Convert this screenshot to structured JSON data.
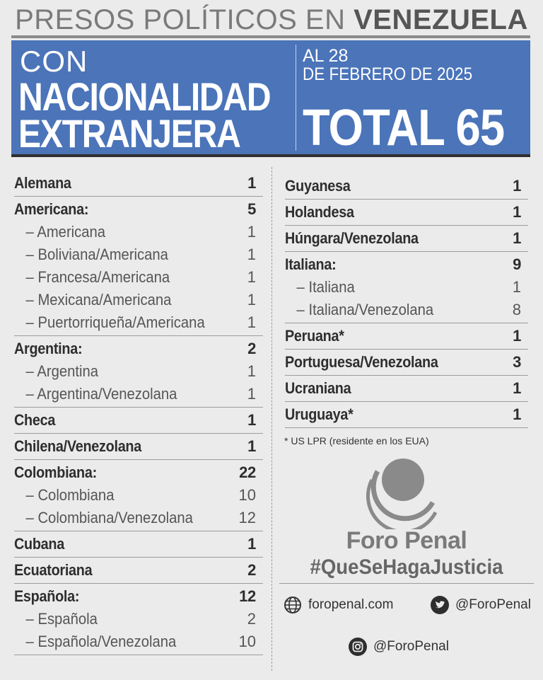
{
  "header": {
    "title_light": "PRESOS POLÍTICOS EN",
    "title_bold": "VENEZUELA"
  },
  "banner": {
    "line1": "CON",
    "line2": "NACIONALIDAD",
    "line3": "EXTRANJERA",
    "date_line1": "AL 28",
    "date_line2": "DE FEBRERO DE 2025",
    "total": "TOTAL 65",
    "color": "#4b74b9"
  },
  "left_groups": [
    {
      "name": "Alemana",
      "count": "1",
      "items": []
    },
    {
      "name": "Americana:",
      "count": "5",
      "items": [
        {
          "name": "– Americana",
          "count": "1"
        },
        {
          "name": "– Boliviana/Americana",
          "count": "1"
        },
        {
          "name": "– Francesa/Americana",
          "count": "1"
        },
        {
          "name": "– Mexicana/Americana",
          "count": "1"
        },
        {
          "name": "– Puertorriqueña/Americana",
          "count": "1"
        }
      ]
    },
    {
      "name": "Argentina:",
      "count": "2",
      "items": [
        {
          "name": "– Argentina",
          "count": "1"
        },
        {
          "name": "– Argentina/Venezolana",
          "count": "1"
        }
      ]
    },
    {
      "name": "Checa",
      "count": "1",
      "items": []
    },
    {
      "name": "Chilena/Venezolana",
      "count": "1",
      "items": []
    },
    {
      "name": "Colombiana:",
      "count": "22",
      "items": [
        {
          "name": "– Colombiana",
          "count": "10"
        },
        {
          "name": "– Colombiana/Venezolana",
          "count": "12"
        }
      ]
    },
    {
      "name": "Cubana",
      "count": "1",
      "items": []
    },
    {
      "name": "Ecuatoriana",
      "count": "2",
      "items": []
    },
    {
      "name": "Española:",
      "count": "12",
      "items": [
        {
          "name": "– Española",
          "count": "2"
        },
        {
          "name": "– Española/Venezolana",
          "count": "10"
        }
      ]
    }
  ],
  "right_groups": [
    {
      "name": "Guyanesa",
      "count": "1",
      "items": []
    },
    {
      "name": "Holandesa",
      "count": "1",
      "items": []
    },
    {
      "name": "Húngara/Venezolana",
      "count": "1",
      "items": []
    },
    {
      "name": "Italiana:",
      "count": "9",
      "items": [
        {
          "name": "– Italiana",
          "count": "1"
        },
        {
          "name": "– Italiana/Venezolana",
          "count": "8"
        }
      ]
    },
    {
      "name": "Peruana*",
      "count": "1",
      "items": []
    },
    {
      "name": "Portuguesa/Venezolana",
      "count": "3",
      "items": []
    },
    {
      "name": "Ucraniana",
      "count": "1",
      "items": []
    },
    {
      "name": "Uruguaya*",
      "count": "1",
      "items": []
    }
  ],
  "footnote": "*  US LPR (residente en los EUA)",
  "brand": {
    "name": "Foro Penal",
    "hashtag": "#QueSeHagaJusticia"
  },
  "social": {
    "website": "foropenal.com",
    "website_icon": "globe-icon",
    "twitter": "@ForoPenal",
    "twitter_icon": "twitter-icon",
    "instagram": "@ForoPenal",
    "instagram_icon": "instagram-icon"
  }
}
